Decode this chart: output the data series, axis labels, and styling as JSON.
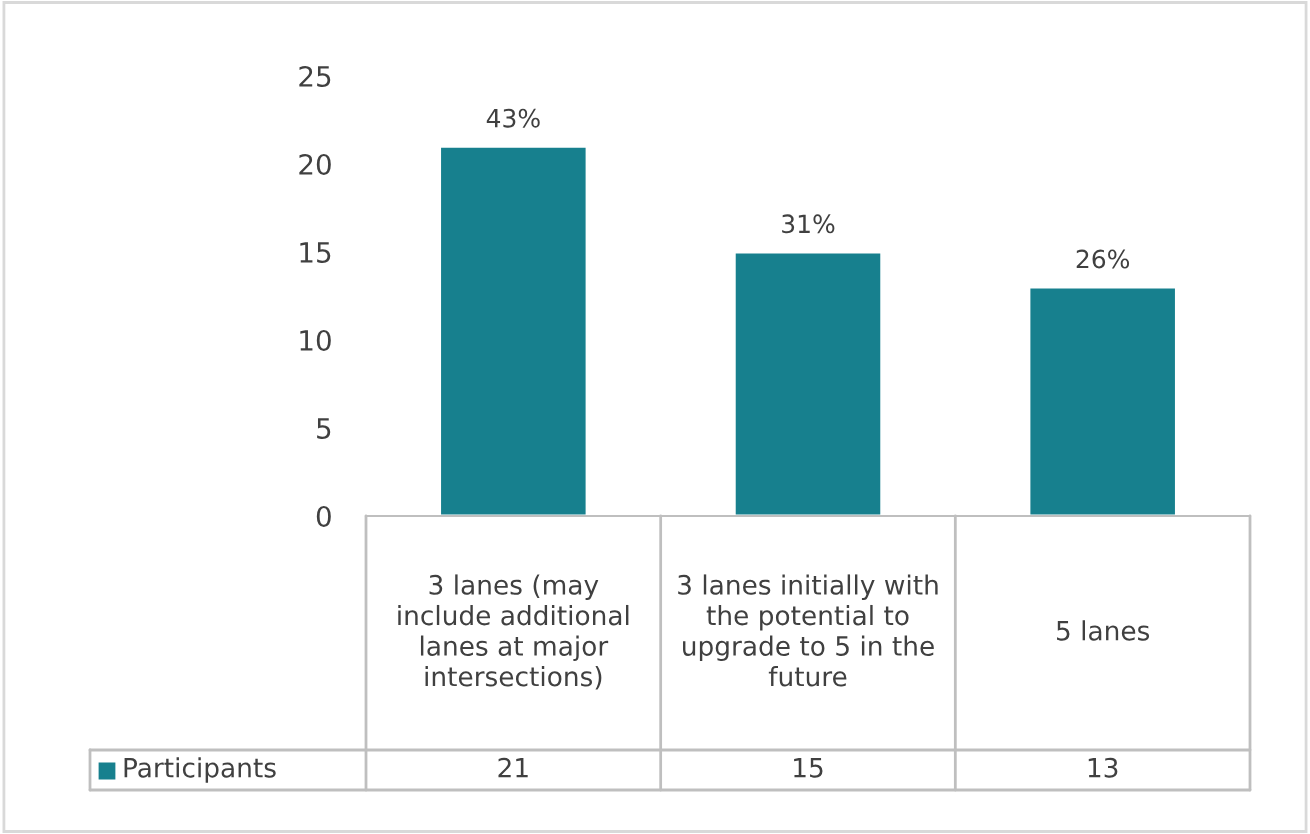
{
  "chart_data": {
    "type": "bar",
    "categories": [
      "3 lanes (may include additional lanes at major intersections)",
      "3 lanes initially with the potential to upgrade to 5 in the future",
      "5 lanes"
    ],
    "series": [
      {
        "name": "Participants",
        "color": "#17808e",
        "values": [
          21,
          15,
          13
        ],
        "value_labels": [
          "21",
          "15",
          "13"
        ]
      }
    ],
    "annotations": [
      {
        "text": "43%",
        "x": "3 lanes (may include additional lanes at major intersections)",
        "y": 21
      },
      {
        "text": "31%",
        "x": "3 lanes initially with the potential to upgrade to 5 in the future",
        "y": 15
      },
      {
        "text": "26%",
        "x": "5 lanes",
        "y": 13
      }
    ],
    "ylim": [
      0,
      25
    ],
    "yticks": [
      0,
      5,
      10,
      15,
      20,
      25
    ],
    "legend": "bottom"
  }
}
